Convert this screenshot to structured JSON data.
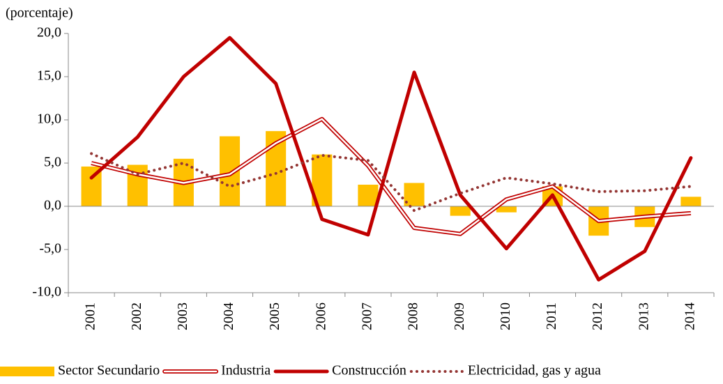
{
  "chart_data": {
    "type": "combo",
    "y_axis_label": "(porcentaje)",
    "categories": [
      "2001",
      "2002",
      "2003",
      "2004",
      "2005",
      "2006",
      "2007",
      "2008",
      "2009",
      "2010",
      "2011",
      "2012",
      "2013",
      "2014"
    ],
    "ylim": [
      -10,
      20
    ],
    "yticks": [
      {
        "value": -10,
        "label": "-10,0"
      },
      {
        "value": -5,
        "label": "-5,0"
      },
      {
        "value": 0,
        "label": "0,0"
      },
      {
        "value": 5,
        "label": "5,0"
      },
      {
        "value": 10,
        "label": "10,0"
      },
      {
        "value": 15,
        "label": "15,0"
      },
      {
        "value": 20,
        "label": "20,0"
      }
    ],
    "legend": "bottom",
    "series": [
      {
        "name": "Sector Secundario",
        "type": "bar",
        "color": "#ffc000",
        "values": [
          4.6,
          4.8,
          5.5,
          8.1,
          8.7,
          6.0,
          2.5,
          2.7,
          -1.1,
          -0.7,
          2.3,
          -3.4,
          -2.4,
          1.1
        ]
      },
      {
        "name": "Industria",
        "type": "line",
        "style": "double",
        "color": "#c00000",
        "values": [
          5.0,
          3.7,
          2.7,
          3.7,
          7.3,
          10.1,
          4.7,
          -2.5,
          -3.2,
          0.8,
          2.3,
          -1.7,
          -1.2,
          -0.8
        ]
      },
      {
        "name": "Construcción",
        "type": "line",
        "style": "solid",
        "color": "#c00000",
        "values": [
          3.3,
          8.0,
          15.0,
          19.5,
          14.2,
          -1.5,
          -3.3,
          15.5,
          1.3,
          -4.9,
          1.3,
          -8.5,
          -5.2,
          5.6
        ]
      },
      {
        "name": "Electricidad, gas y agua",
        "type": "line",
        "style": "dotted",
        "color": "#943634",
        "values": [
          6.1,
          3.7,
          5.0,
          2.3,
          3.8,
          5.9,
          5.3,
          -0.5,
          1.5,
          3.3,
          2.6,
          1.7,
          1.8,
          2.3
        ]
      }
    ]
  }
}
